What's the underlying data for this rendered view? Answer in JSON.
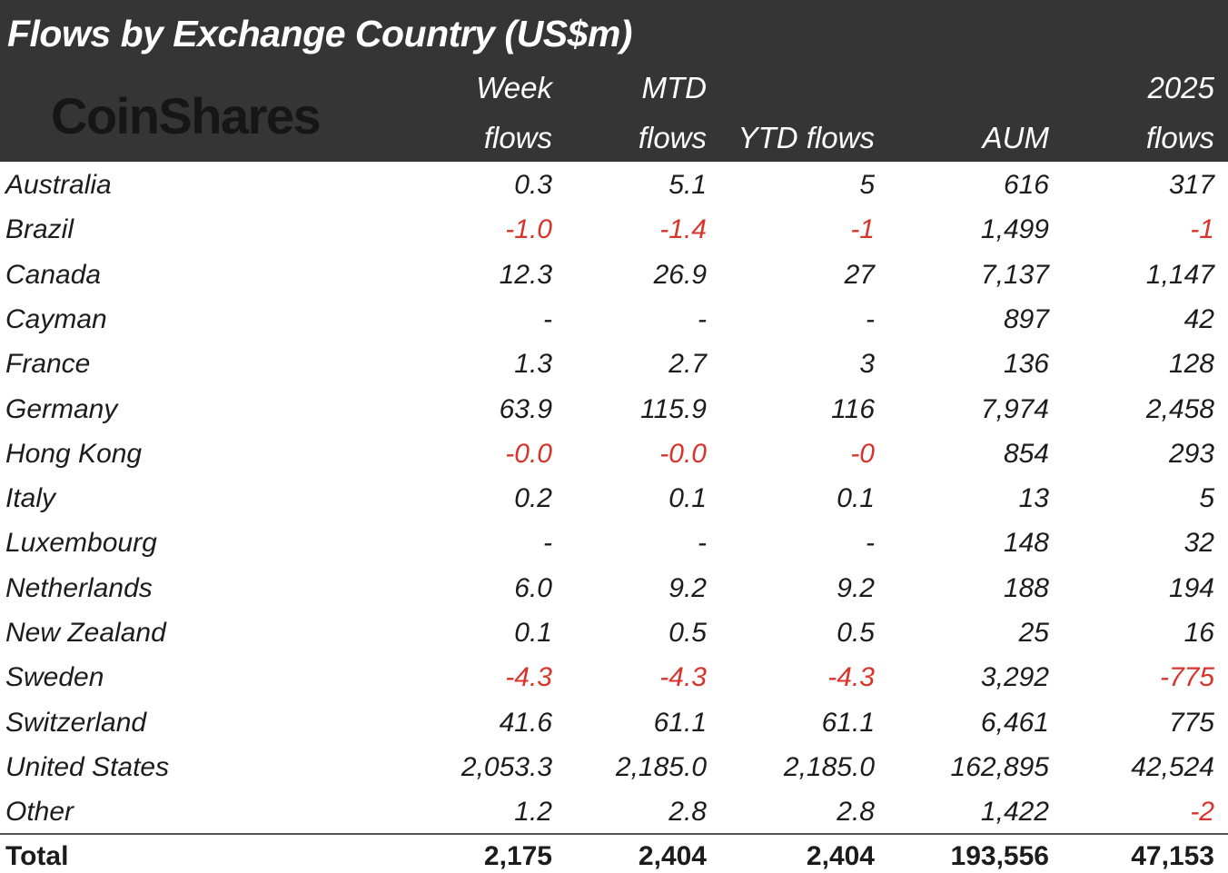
{
  "header": {
    "title": "Flows by Exchange Country (US$m)",
    "logo": "CoinShares",
    "columns": [
      [
        "Week",
        "flows"
      ],
      [
        "MTD",
        "flows"
      ],
      [
        "YTD flows"
      ],
      [
        "AUM"
      ],
      [
        "2025",
        "flows"
      ]
    ]
  },
  "negative_color": "#d8342c",
  "table": {
    "rows": [
      [
        "Australia",
        "0.3",
        "5.1",
        "5",
        "616",
        "317"
      ],
      [
        "Brazil",
        "-1.0",
        "-1.4",
        "-1",
        "1,499",
        "-1"
      ],
      [
        "Canada",
        "12.3",
        "26.9",
        "27",
        "7,137",
        "1,147"
      ],
      [
        "Cayman",
        "-",
        "-",
        "-",
        "897",
        "42"
      ],
      [
        "France",
        "1.3",
        "2.7",
        "3",
        "136",
        "128"
      ],
      [
        "Germany",
        "63.9",
        "115.9",
        "116",
        "7,974",
        "2,458"
      ],
      [
        "Hong Kong",
        "-0.0",
        "-0.0",
        "-0",
        "854",
        "293"
      ],
      [
        "Italy",
        "0.2",
        "0.1",
        "0.1",
        "13",
        "5"
      ],
      [
        "Luxembourg",
        "-",
        "-",
        "-",
        "148",
        "32"
      ],
      [
        "Netherlands",
        "6.0",
        "9.2",
        "9.2",
        "188",
        "194"
      ],
      [
        "New Zealand",
        "0.1",
        "0.5",
        "0.5",
        "25",
        "16"
      ],
      [
        "Sweden",
        "-4.3",
        "-4.3",
        "-4.3",
        "3,292",
        "-775"
      ],
      [
        "Switzerland",
        "41.6",
        "61.1",
        "61.1",
        "6,461",
        "775"
      ],
      [
        "United States",
        "2,053.3",
        "2,185.0",
        "2,185.0",
        "162,895",
        "42,524"
      ],
      [
        "Other",
        "1.2",
        "2.8",
        "2.8",
        "1,422",
        "-2"
      ]
    ],
    "total": [
      "Total",
      "2,175",
      "2,404",
      "2,404",
      "193,556",
      "47,153"
    ]
  }
}
